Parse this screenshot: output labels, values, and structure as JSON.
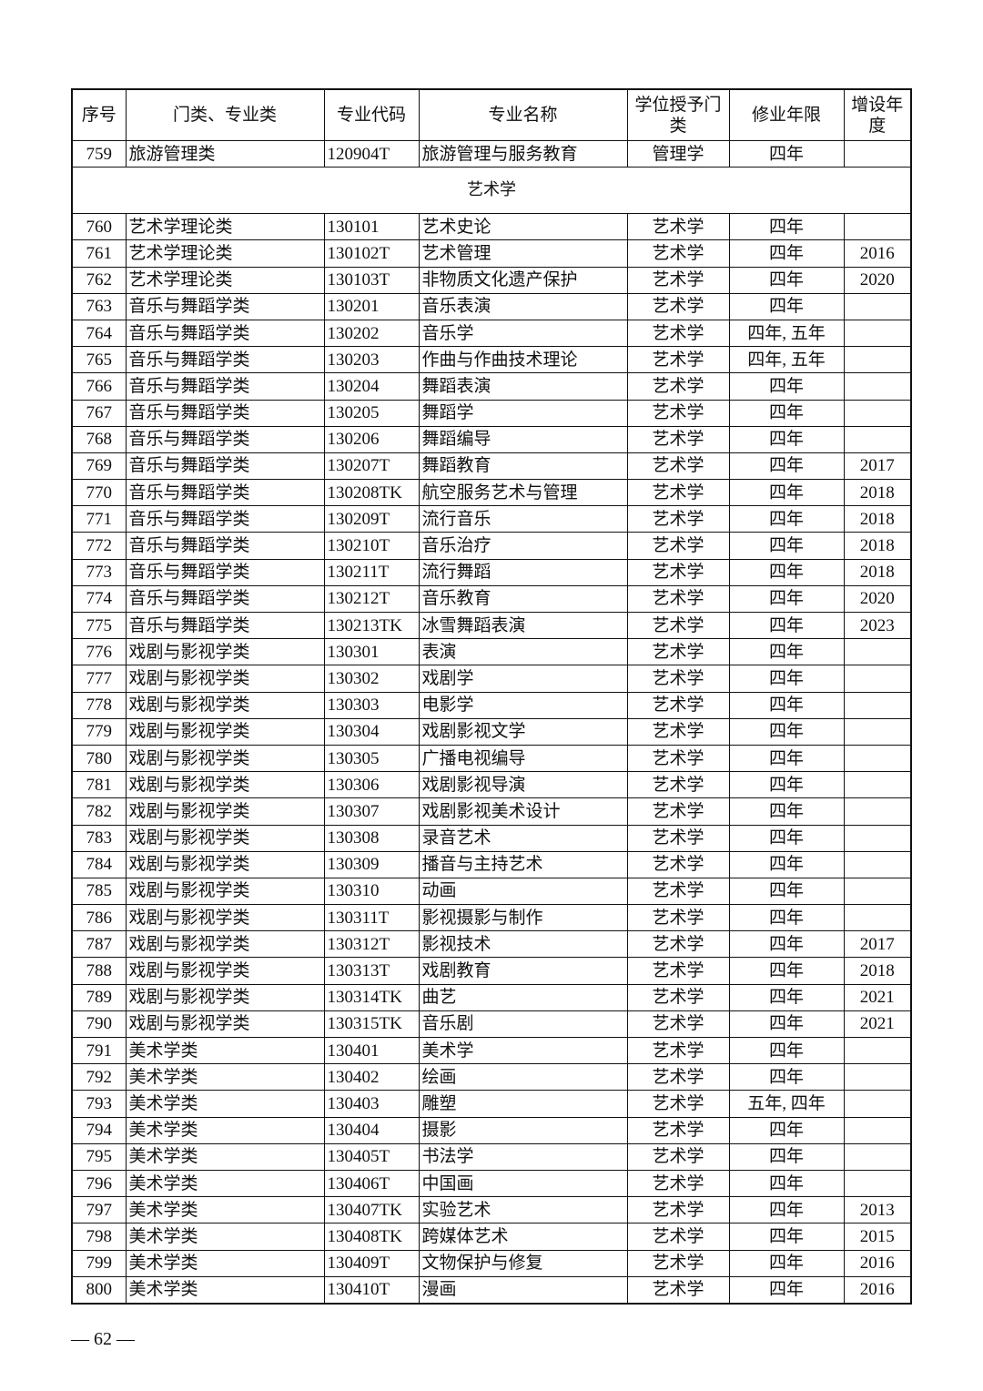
{
  "headers": [
    "序号",
    "门类、专业类",
    "专业代码",
    "专业名称",
    "学位授予门类",
    "修业年限",
    "增设年度"
  ],
  "first_row": [
    "759",
    "旅游管理类",
    "120904T",
    "旅游管理与服务教育",
    "管理学",
    "四年",
    ""
  ],
  "section_title": "艺术学",
  "rows": [
    [
      "760",
      "艺术学理论类",
      "130101",
      "艺术史论",
      "艺术学",
      "四年",
      ""
    ],
    [
      "761",
      "艺术学理论类",
      "130102T",
      "艺术管理",
      "艺术学",
      "四年",
      "2016"
    ],
    [
      "762",
      "艺术学理论类",
      "130103T",
      "非物质文化遗产保护",
      "艺术学",
      "四年",
      "2020"
    ],
    [
      "763",
      "音乐与舞蹈学类",
      "130201",
      "音乐表演",
      "艺术学",
      "四年",
      ""
    ],
    [
      "764",
      "音乐与舞蹈学类",
      "130202",
      "音乐学",
      "艺术学",
      "四年, 五年",
      ""
    ],
    [
      "765",
      "音乐与舞蹈学类",
      "130203",
      "作曲与作曲技术理论",
      "艺术学",
      "四年, 五年",
      ""
    ],
    [
      "766",
      "音乐与舞蹈学类",
      "130204",
      "舞蹈表演",
      "艺术学",
      "四年",
      ""
    ],
    [
      "767",
      "音乐与舞蹈学类",
      "130205",
      "舞蹈学",
      "艺术学",
      "四年",
      ""
    ],
    [
      "768",
      "音乐与舞蹈学类",
      "130206",
      "舞蹈编导",
      "艺术学",
      "四年",
      ""
    ],
    [
      "769",
      "音乐与舞蹈学类",
      "130207T",
      "舞蹈教育",
      "艺术学",
      "四年",
      "2017"
    ],
    [
      "770",
      "音乐与舞蹈学类",
      "130208TK",
      "航空服务艺术与管理",
      "艺术学",
      "四年",
      "2018"
    ],
    [
      "771",
      "音乐与舞蹈学类",
      "130209T",
      "流行音乐",
      "艺术学",
      "四年",
      "2018"
    ],
    [
      "772",
      "音乐与舞蹈学类",
      "130210T",
      "音乐治疗",
      "艺术学",
      "四年",
      "2018"
    ],
    [
      "773",
      "音乐与舞蹈学类",
      "130211T",
      "流行舞蹈",
      "艺术学",
      "四年",
      "2018"
    ],
    [
      "774",
      "音乐与舞蹈学类",
      "130212T",
      "音乐教育",
      "艺术学",
      "四年",
      "2020"
    ],
    [
      "775",
      "音乐与舞蹈学类",
      "130213TK",
      "冰雪舞蹈表演",
      "艺术学",
      "四年",
      "2023"
    ],
    [
      "776",
      "戏剧与影视学类",
      "130301",
      "表演",
      "艺术学",
      "四年",
      ""
    ],
    [
      "777",
      "戏剧与影视学类",
      "130302",
      "戏剧学",
      "艺术学",
      "四年",
      ""
    ],
    [
      "778",
      "戏剧与影视学类",
      "130303",
      "电影学",
      "艺术学",
      "四年",
      ""
    ],
    [
      "779",
      "戏剧与影视学类",
      "130304",
      "戏剧影视文学",
      "艺术学",
      "四年",
      ""
    ],
    [
      "780",
      "戏剧与影视学类",
      "130305",
      "广播电视编导",
      "艺术学",
      "四年",
      ""
    ],
    [
      "781",
      "戏剧与影视学类",
      "130306",
      "戏剧影视导演",
      "艺术学",
      "四年",
      ""
    ],
    [
      "782",
      "戏剧与影视学类",
      "130307",
      "戏剧影视美术设计",
      "艺术学",
      "四年",
      ""
    ],
    [
      "783",
      "戏剧与影视学类",
      "130308",
      "录音艺术",
      "艺术学",
      "四年",
      ""
    ],
    [
      "784",
      "戏剧与影视学类",
      "130309",
      "播音与主持艺术",
      "艺术学",
      "四年",
      ""
    ],
    [
      "785",
      "戏剧与影视学类",
      "130310",
      "动画",
      "艺术学",
      "四年",
      ""
    ],
    [
      "786",
      "戏剧与影视学类",
      "130311T",
      "影视摄影与制作",
      "艺术学",
      "四年",
      ""
    ],
    [
      "787",
      "戏剧与影视学类",
      "130312T",
      "影视技术",
      "艺术学",
      "四年",
      "2017"
    ],
    [
      "788",
      "戏剧与影视学类",
      "130313T",
      "戏剧教育",
      "艺术学",
      "四年",
      "2018"
    ],
    [
      "789",
      "戏剧与影视学类",
      "130314TK",
      "曲艺",
      "艺术学",
      "四年",
      "2021"
    ],
    [
      "790",
      "戏剧与影视学类",
      "130315TK",
      "音乐剧",
      "艺术学",
      "四年",
      "2021"
    ],
    [
      "791",
      "美术学类",
      "130401",
      "美术学",
      "艺术学",
      "四年",
      ""
    ],
    [
      "792",
      "美术学类",
      "130402",
      "绘画",
      "艺术学",
      "四年",
      ""
    ],
    [
      "793",
      "美术学类",
      "130403",
      "雕塑",
      "艺术学",
      "五年, 四年",
      ""
    ],
    [
      "794",
      "美术学类",
      "130404",
      "摄影",
      "艺术学",
      "四年",
      ""
    ],
    [
      "795",
      "美术学类",
      "130405T",
      "书法学",
      "艺术学",
      "四年",
      ""
    ],
    [
      "796",
      "美术学类",
      "130406T",
      "中国画",
      "艺术学",
      "四年",
      ""
    ],
    [
      "797",
      "美术学类",
      "130407TK",
      "实验艺术",
      "艺术学",
      "四年",
      "2013"
    ],
    [
      "798",
      "美术学类",
      "130408TK",
      "跨媒体艺术",
      "艺术学",
      "四年",
      "2015"
    ],
    [
      "799",
      "美术学类",
      "130409T",
      "文物保护与修复",
      "艺术学",
      "四年",
      "2016"
    ],
    [
      "800",
      "美术学类",
      "130410T",
      "漫画",
      "艺术学",
      "四年",
      "2016"
    ]
  ],
  "page_number": "— 62 —"
}
